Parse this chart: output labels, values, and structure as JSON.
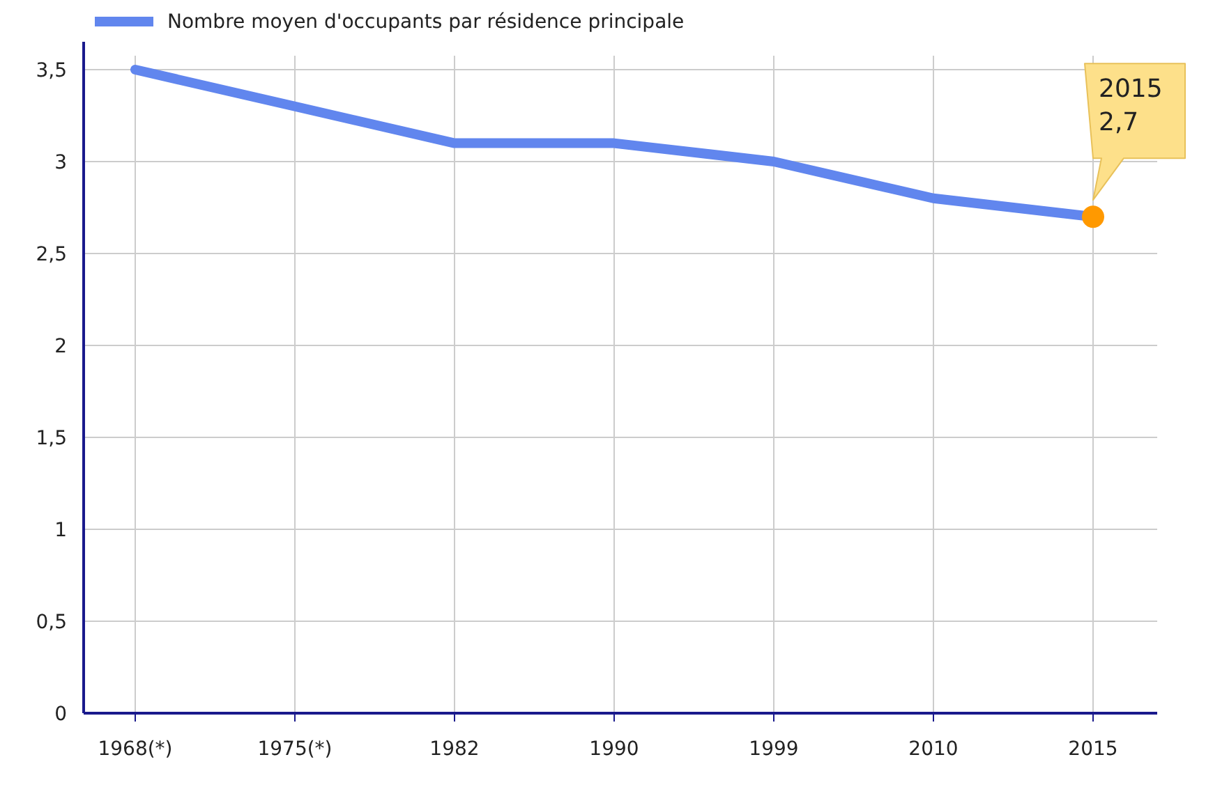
{
  "chart_data": {
    "type": "line",
    "categories": [
      "1968(*)",
      "1975(*)",
      "1982",
      "1990",
      "1999",
      "2010",
      "2015"
    ],
    "series": [
      {
        "name": "Nombre moyen d'occupants par résidence principale",
        "color": "#6186ee",
        "values": [
          3.5,
          3.3,
          3.1,
          3.1,
          3.0,
          2.8,
          2.7
        ]
      }
    ],
    "ylim": [
      0,
      3.5
    ],
    "yticks": [
      0,
      {
        "value": 0.5,
        "label": "0,5"
      },
      1,
      {
        "value": 1.5,
        "label": "1,5"
      },
      2,
      {
        "value": 2.5,
        "label": "2,5"
      },
      3,
      {
        "value": 3.5,
        "label": "3,5"
      }
    ],
    "grid": true,
    "legend": "top left",
    "marker": "none",
    "annotations": [
      "2015\n2,7"
    ]
  }
}
